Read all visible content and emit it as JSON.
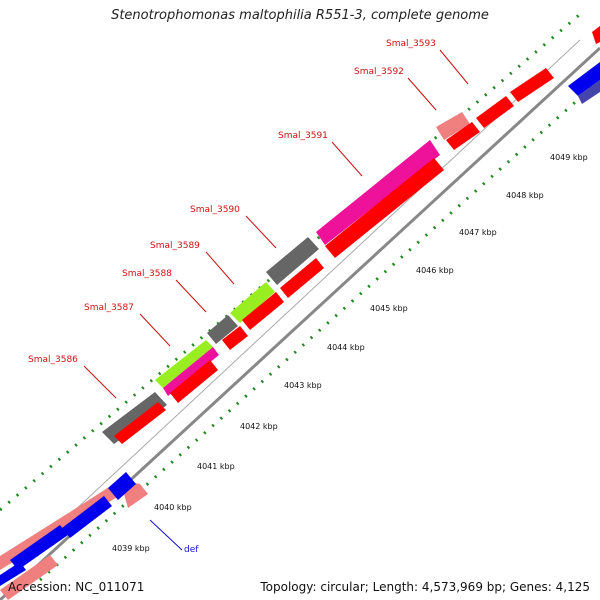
{
  "title": "Stenotrophomonas maltophilia R551-3, complete genome",
  "accession_label": "Accession: NC_011071",
  "topology_label": "Topology: circular; Length: 4,573,969 bp; Genes: 4,125",
  "gene_labels": [
    "Smal_3593",
    "Smal_3592",
    "Smal_3591",
    "Smal_3590",
    "Smal_3589",
    "Smal_3588",
    "Smal_3587",
    "Smal_3586",
    "def"
  ],
  "kbp_labels": [
    "4049 kbp",
    "4048 kbp",
    "4047 kbp",
    "4046 kbp",
    "4045 kbp",
    "4044 kbp",
    "4043 kbp",
    "4042 kbp",
    "4041 kbp",
    "4040 kbp",
    "4039 kbp"
  ],
  "colors": {
    "cds_red": "#ff0000",
    "cds_pink": "#f08080",
    "cds_magenta": "#ee1199",
    "cds_gray": "#666666",
    "cds_green": "#99ee22",
    "cds_blue": "#0000ee",
    "backbone": "#888888",
    "tick_green": "#228822"
  }
}
